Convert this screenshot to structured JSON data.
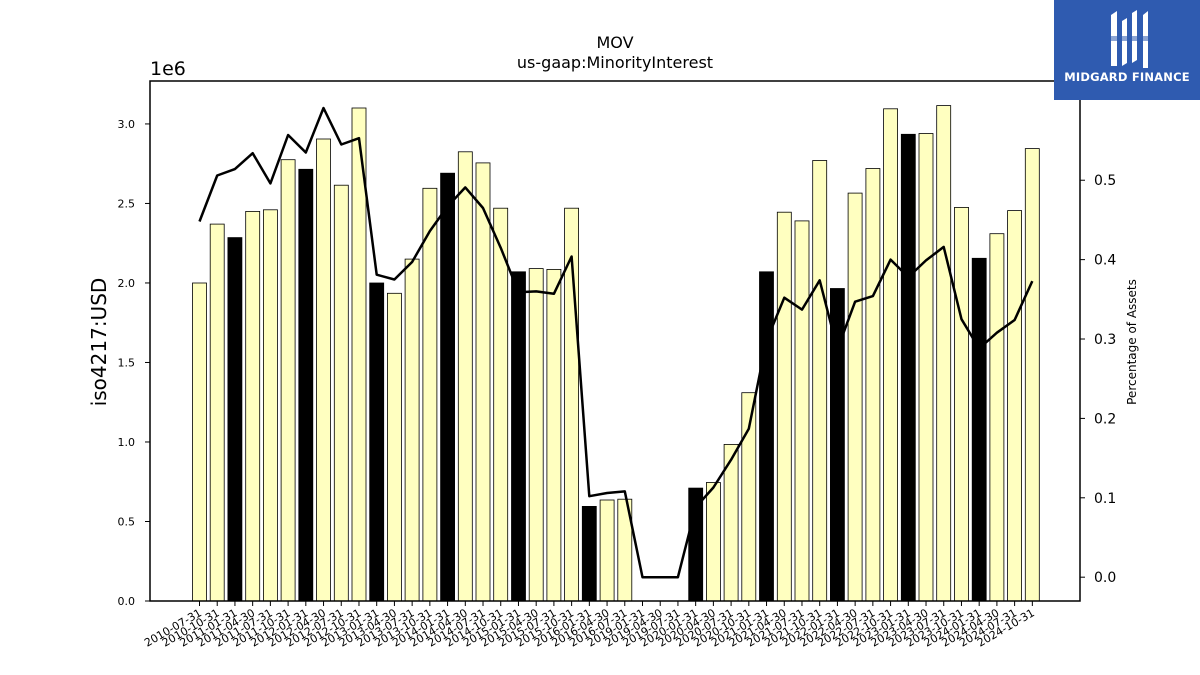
{
  "logo": {
    "text": "MIDGARD FINANCE",
    "icon": "midgard-logo-icon",
    "background": "#2f5bb0"
  },
  "chart_data": {
    "type": "bar",
    "title": "MOV",
    "subtitle": "us-gaap:MinorityInterest",
    "ylabel": "iso4217:USD",
    "y2label": "Percentage of Assets",
    "y_offset_label": "1e6",
    "ylim": [
      0,
      3270000
    ],
    "y2lim": [
      -0.03,
      0.625
    ],
    "yticks": [
      "0.0",
      "0.5",
      "1.0",
      "1.5",
      "2.0",
      "2.5",
      "3.0"
    ],
    "y2ticks": [
      "0.0",
      "0.1",
      "0.2",
      "0.3",
      "0.4",
      "0.5"
    ],
    "bar_color_regular": "#ffffc0",
    "bar_color_annual": "#000000",
    "line_color": "#000000",
    "categories": [
      "2010-07-31",
      "2010-10-31",
      "2011-01-31",
      "2011-04-30",
      "2011-07-31",
      "2011-10-31",
      "2012-01-31",
      "2012-04-30",
      "2012-07-31",
      "2012-10-31",
      "2013-01-31",
      "2013-04-30",
      "2013-07-31",
      "2013-10-31",
      "2014-01-31",
      "2014-04-30",
      "2014-07-31",
      "2014-10-31",
      "2015-01-31",
      "2015-04-30",
      "2015-07-31",
      "2015-10-31",
      "2016-01-31",
      "2016-04-30",
      "2016-07-31",
      "2019-01-31",
      "2019-04-30",
      "2019-07-31",
      "2020-01-31",
      "2020-04-30",
      "2020-07-31",
      "2020-10-31",
      "2021-01-31",
      "2021-04-30",
      "2021-07-31",
      "2021-10-31",
      "2022-01-31",
      "2022-04-30",
      "2022-07-31",
      "2022-10-31",
      "2023-01-31",
      "2023-04-30",
      "2023-07-31",
      "2023-10-31",
      "2024-01-31",
      "2024-04-30",
      "2024-07-31",
      "2024-10-31"
    ],
    "values": [
      2000000,
      2370000,
      2285000,
      2450000,
      2460000,
      2775000,
      2715000,
      2905000,
      2615000,
      3100000,
      2000000,
      1935000,
      2150000,
      2595000,
      2690000,
      2825000,
      2755000,
      2470000,
      2070000,
      2090000,
      2085000,
      2470000,
      595000,
      635000,
      640000,
      null,
      null,
      null,
      710000,
      745000,
      985000,
      1310000,
      2070000,
      2445000,
      2390000,
      2770000,
      1965000,
      2565000,
      2720000,
      3095000,
      2935000,
      2940000,
      3115000,
      2475000,
      2155000,
      2310000,
      2455000,
      2845000
    ],
    "annual": [
      false,
      false,
      true,
      false,
      false,
      false,
      true,
      false,
      false,
      false,
      true,
      false,
      false,
      false,
      true,
      false,
      false,
      false,
      true,
      false,
      false,
      false,
      true,
      false,
      false,
      false,
      false,
      false,
      true,
      false,
      false,
      false,
      true,
      false,
      false,
      false,
      true,
      false,
      false,
      false,
      true,
      false,
      false,
      false,
      true,
      false,
      false,
      false
    ],
    "pct_assets": [
      0.448,
      0.506,
      0.514,
      0.534,
      0.496,
      0.557,
      0.535,
      0.591,
      0.545,
      0.553,
      0.381,
      0.375,
      0.397,
      0.436,
      0.467,
      0.491,
      0.465,
      0.415,
      0.359,
      0.36,
      0.357,
      0.404,
      0.102,
      0.106,
      0.108,
      0.0,
      0.0,
      0.0,
      0.088,
      0.113,
      0.148,
      0.187,
      0.298,
      0.352,
      0.337,
      0.374,
      0.287,
      0.347,
      0.354,
      0.4,
      0.378,
      0.399,
      0.416,
      0.325,
      0.288,
      0.308,
      0.324,
      0.373
    ]
  }
}
